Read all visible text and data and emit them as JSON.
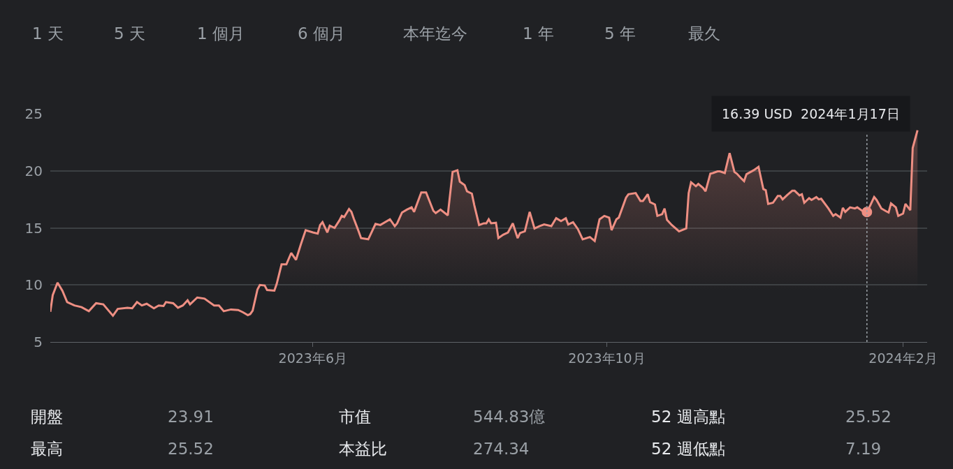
{
  "chart_data": {
    "type": "area",
    "x": [
      "2023-02-12",
      "2023-02-13",
      "2023-02-15",
      "2023-02-17",
      "2023-02-19",
      "2023-02-22",
      "2023-02-25",
      "2023-02-28",
      "2023-03-03",
      "2023-03-06",
      "2023-03-10",
      "2023-03-12",
      "2023-03-16",
      "2023-03-18",
      "2023-03-20",
      "2023-03-22",
      "2023-03-24",
      "2023-03-27",
      "2023-03-29",
      "2023-03-31",
      "2023-04-01",
      "2023-04-04",
      "2023-04-06",
      "2023-04-08",
      "2023-04-10",
      "2023-04-11",
      "2023-04-14",
      "2023-04-17",
      "2023-04-21",
      "2023-04-23",
      "2023-04-25",
      "2023-04-28",
      "2023-05-01",
      "2023-05-03",
      "2023-05-05",
      "2023-05-06",
      "2023-05-07",
      "2023-05-09",
      "2023-05-10",
      "2023-05-12",
      "2023-05-13",
      "2023-05-16",
      "2023-05-17",
      "2023-05-19",
      "2023-05-21",
      "2023-05-23",
      "2023-05-25",
      "2023-05-27",
      "2023-05-29",
      "2023-06-01",
      "2023-06-03",
      "2023-06-04",
      "2023-06-05",
      "2023-06-07",
      "2023-06-08",
      "2023-06-10",
      "2023-06-12",
      "2023-06-13",
      "2023-06-14",
      "2023-06-16",
      "2023-06-17",
      "2023-06-18",
      "2023-06-20",
      "2023-06-21",
      "2023-06-24",
      "2023-06-27",
      "2023-06-29",
      "2023-07-03",
      "2023-07-05",
      "2023-07-06",
      "2023-07-08",
      "2023-07-10",
      "2023-07-12",
      "2023-07-13",
      "2023-07-16",
      "2023-07-18",
      "2023-07-21",
      "2023-07-22",
      "2023-07-24",
      "2023-07-27",
      "2023-07-29",
      "2023-07-31",
      "2023-08-01",
      "2023-08-03",
      "2023-08-04",
      "2023-08-06",
      "2023-08-07",
      "2023-08-09",
      "2023-08-11",
      "2023-08-12",
      "2023-08-13",
      "2023-08-14",
      "2023-08-16",
      "2023-08-17",
      "2023-08-19",
      "2023-08-21",
      "2023-08-23",
      "2023-08-25",
      "2023-08-26",
      "2023-08-28",
      "2023-08-30",
      "2023-09-01",
      "2023-09-03",
      "2023-09-05",
      "2023-09-08",
      "2023-09-10",
      "2023-09-12",
      "2023-09-14",
      "2023-09-15",
      "2023-09-17",
      "2023-09-19",
      "2023-09-21",
      "2023-09-24",
      "2023-09-26",
      "2023-09-28",
      "2023-09-30",
      "2023-10-02",
      "2023-10-03",
      "2023-10-05",
      "2023-10-06",
      "2023-10-09",
      "2023-10-10",
      "2023-10-13",
      "2023-10-15",
      "2023-10-16",
      "2023-10-18",
      "2023-10-19",
      "2023-10-21",
      "2023-10-22",
      "2023-10-24",
      "2023-10-25",
      "2023-10-26",
      "2023-10-28",
      "2023-10-31",
      "2023-11-03",
      "2023-11-04",
      "2023-11-05",
      "2023-11-07",
      "2023-11-08",
      "2023-11-10",
      "2023-11-11",
      "2023-11-13",
      "2023-11-14",
      "2023-11-16",
      "2023-11-17",
      "2023-11-19",
      "2023-11-21",
      "2023-11-23",
      "2023-11-24",
      "2023-11-26",
      "2023-11-27",
      "2023-11-28",
      "2023-12-01",
      "2023-12-03",
      "2023-12-05",
      "2023-12-06",
      "2023-12-07",
      "2023-12-09",
      "2023-12-11",
      "2023-12-12",
      "2023-12-13",
      "2023-12-15",
      "2023-12-17",
      "2023-12-18",
      "2023-12-20",
      "2023-12-21",
      "2023-12-22",
      "2023-12-24",
      "2023-12-25",
      "2023-12-27",
      "2023-12-28",
      "2023-12-29",
      "2024-01-01",
      "2024-01-03",
      "2024-01-04",
      "2024-01-06",
      "2024-01-07",
      "2024-01-08",
      "2024-01-10",
      "2024-01-12",
      "2024-01-13",
      "2024-01-15",
      "2024-01-17",
      "2024-01-18",
      "2024-01-20",
      "2024-01-21",
      "2024-01-23",
      "2024-01-25",
      "2024-01-26",
      "2024-01-27",
      "2024-01-29",
      "2024-01-30",
      "2024-02-01",
      "2024-02-02",
      "2024-02-04",
      "2024-02-05",
      "2024-02-07"
    ],
    "series": [
      {
        "color": "#ee8f83",
        "values": [
          7.65,
          9.1,
          10.2,
          9.5,
          8.5,
          8.2,
          8.05,
          7.7,
          8.4,
          8.3,
          7.3,
          7.9,
          8.0,
          7.95,
          8.5,
          8.2,
          8.35,
          7.95,
          8.2,
          8.15,
          8.5,
          8.4,
          8.0,
          8.2,
          8.65,
          8.3,
          8.9,
          8.8,
          8.2,
          8.2,
          7.7,
          7.85,
          7.8,
          7.6,
          7.35,
          7.45,
          7.75,
          9.6,
          10.0,
          9.95,
          9.55,
          9.5,
          10.1,
          11.8,
          11.8,
          12.8,
          12.2,
          13.55,
          14.8,
          14.6,
          14.5,
          15.25,
          15.5,
          14.6,
          15.2,
          15.0,
          15.65,
          16.05,
          15.95,
          16.65,
          16.4,
          15.8,
          14.7,
          14.1,
          14.0,
          15.35,
          15.25,
          15.75,
          15.15,
          15.4,
          16.35,
          16.6,
          16.8,
          16.4,
          18.1,
          18.1,
          16.5,
          16.3,
          16.6,
          16.1,
          19.9,
          20.05,
          19.05,
          18.75,
          18.2,
          18.0,
          17.0,
          15.25,
          15.4,
          15.4,
          15.75,
          15.4,
          15.45,
          14.1,
          14.4,
          14.6,
          15.4,
          14.1,
          14.55,
          14.7,
          16.4,
          14.95,
          15.15,
          15.3,
          15.15,
          15.85,
          15.6,
          15.85,
          15.3,
          15.5,
          14.9,
          14.0,
          14.2,
          13.85,
          15.75,
          16.05,
          15.9,
          14.8,
          15.75,
          15.9,
          17.65,
          17.95,
          18.05,
          17.35,
          17.35,
          17.95,
          17.25,
          17.05,
          16.05,
          16.2,
          16.7,
          15.7,
          15.25,
          14.7,
          14.95,
          18.05,
          19.0,
          18.65,
          18.85,
          18.5,
          18.2,
          19.75,
          19.8,
          19.95,
          19.95,
          19.8,
          21.55,
          19.9,
          19.75,
          19.3,
          19.1,
          19.7,
          20.05,
          20.35,
          18.4,
          18.3,
          17.1,
          17.2,
          17.8,
          17.8,
          17.5,
          17.9,
          18.25,
          18.25,
          17.85,
          17.95,
          17.2,
          17.6,
          17.45,
          17.7,
          17.5,
          17.55,
          16.7,
          16.05,
          16.2,
          15.9,
          16.75,
          16.4,
          16.8,
          16.7,
          16.8,
          16.5,
          16.39,
          16.8,
          17.7,
          17.45,
          16.7,
          16.45,
          16.35,
          17.15,
          16.8,
          16.05,
          16.25,
          17.1,
          16.55,
          22.0,
          23.55
        ]
      },
      {
        "type": "scatter",
        "color": "#ee8f83",
        "x": [
          "2024-01-17"
        ],
        "values": [
          16.39
        ]
      }
    ],
    "xlim": [
      "2023-02-12",
      "2024-02-11"
    ],
    "xticks": [
      {
        "value": "2023-06-01",
        "label": "2023年6月"
      },
      {
        "value": "2023-10-01",
        "label": "2023年10月"
      },
      {
        "value": "2024-02-01",
        "label": "2024年2月"
      }
    ],
    "ylim": [
      5,
      25
    ],
    "yticks": [
      5,
      10,
      15,
      20,
      25
    ],
    "grid": "y",
    "ref_lines": [
      {
        "axis": "x",
        "value": "2024-01-17",
        "label": "16.39 USD  2024年1月17日",
        "line_style": "dotted",
        "color": "#9aa0a6"
      }
    ],
    "annotations": [
      "1 天",
      "5 天",
      "1 個月",
      "6 個月",
      "本年迄今",
      "1 年",
      "5 年",
      "最久",
      "開盤",
      "23.91",
      "市值",
      "544.83億",
      "52 週高點",
      "25.52",
      "最高",
      "25.52",
      "本益比",
      "274.34",
      "52 週低點",
      "7.19"
    ]
  }
}
